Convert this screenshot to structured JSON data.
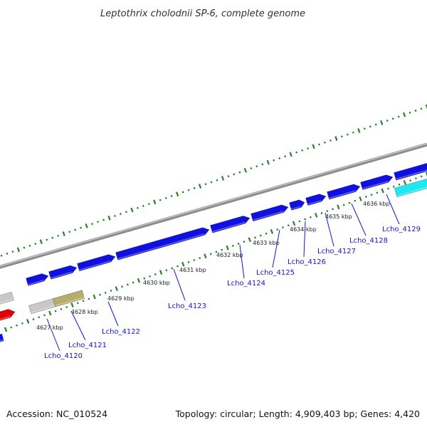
{
  "title": "Leptothrix cholodnii SP-6, complete genome",
  "footer": {
    "accession": "Accession: NC_010524",
    "summary": "Topology: circular; Length: 4,909,403 bp; Genes: 4,420"
  },
  "colors": {
    "background": "#ffffff",
    "backbone": "#8c8c8c",
    "gene_blue": "#1010e0",
    "gene_red": "#e00000",
    "gene_cyan": "#20e8f0",
    "gene_grey": "#c8c8c8",
    "gene_olive": "#b5ad6a",
    "tick_green": "#2a7d2a"
  },
  "kbp_labels": [
    "4627 kbp",
    "4628 kbp",
    "4629 kbp",
    "4630 kbp",
    "4631 kbp",
    "4632 kbp",
    "4633 kbp",
    "4634 kbp",
    "4635 kbp",
    "4636 kbp"
  ],
  "genes": [
    {
      "label": "Lcho_4120"
    },
    {
      "label": "Lcho_4121"
    },
    {
      "label": "Lcho_4122"
    },
    {
      "label": "Lcho_4123"
    },
    {
      "label": "Lcho_4124"
    },
    {
      "label": "Lcho_4125"
    },
    {
      "label": "Lcho_4126"
    },
    {
      "label": "Lcho_4127"
    },
    {
      "label": "Lcho_4128"
    },
    {
      "label": "Lcho_4129"
    }
  ]
}
